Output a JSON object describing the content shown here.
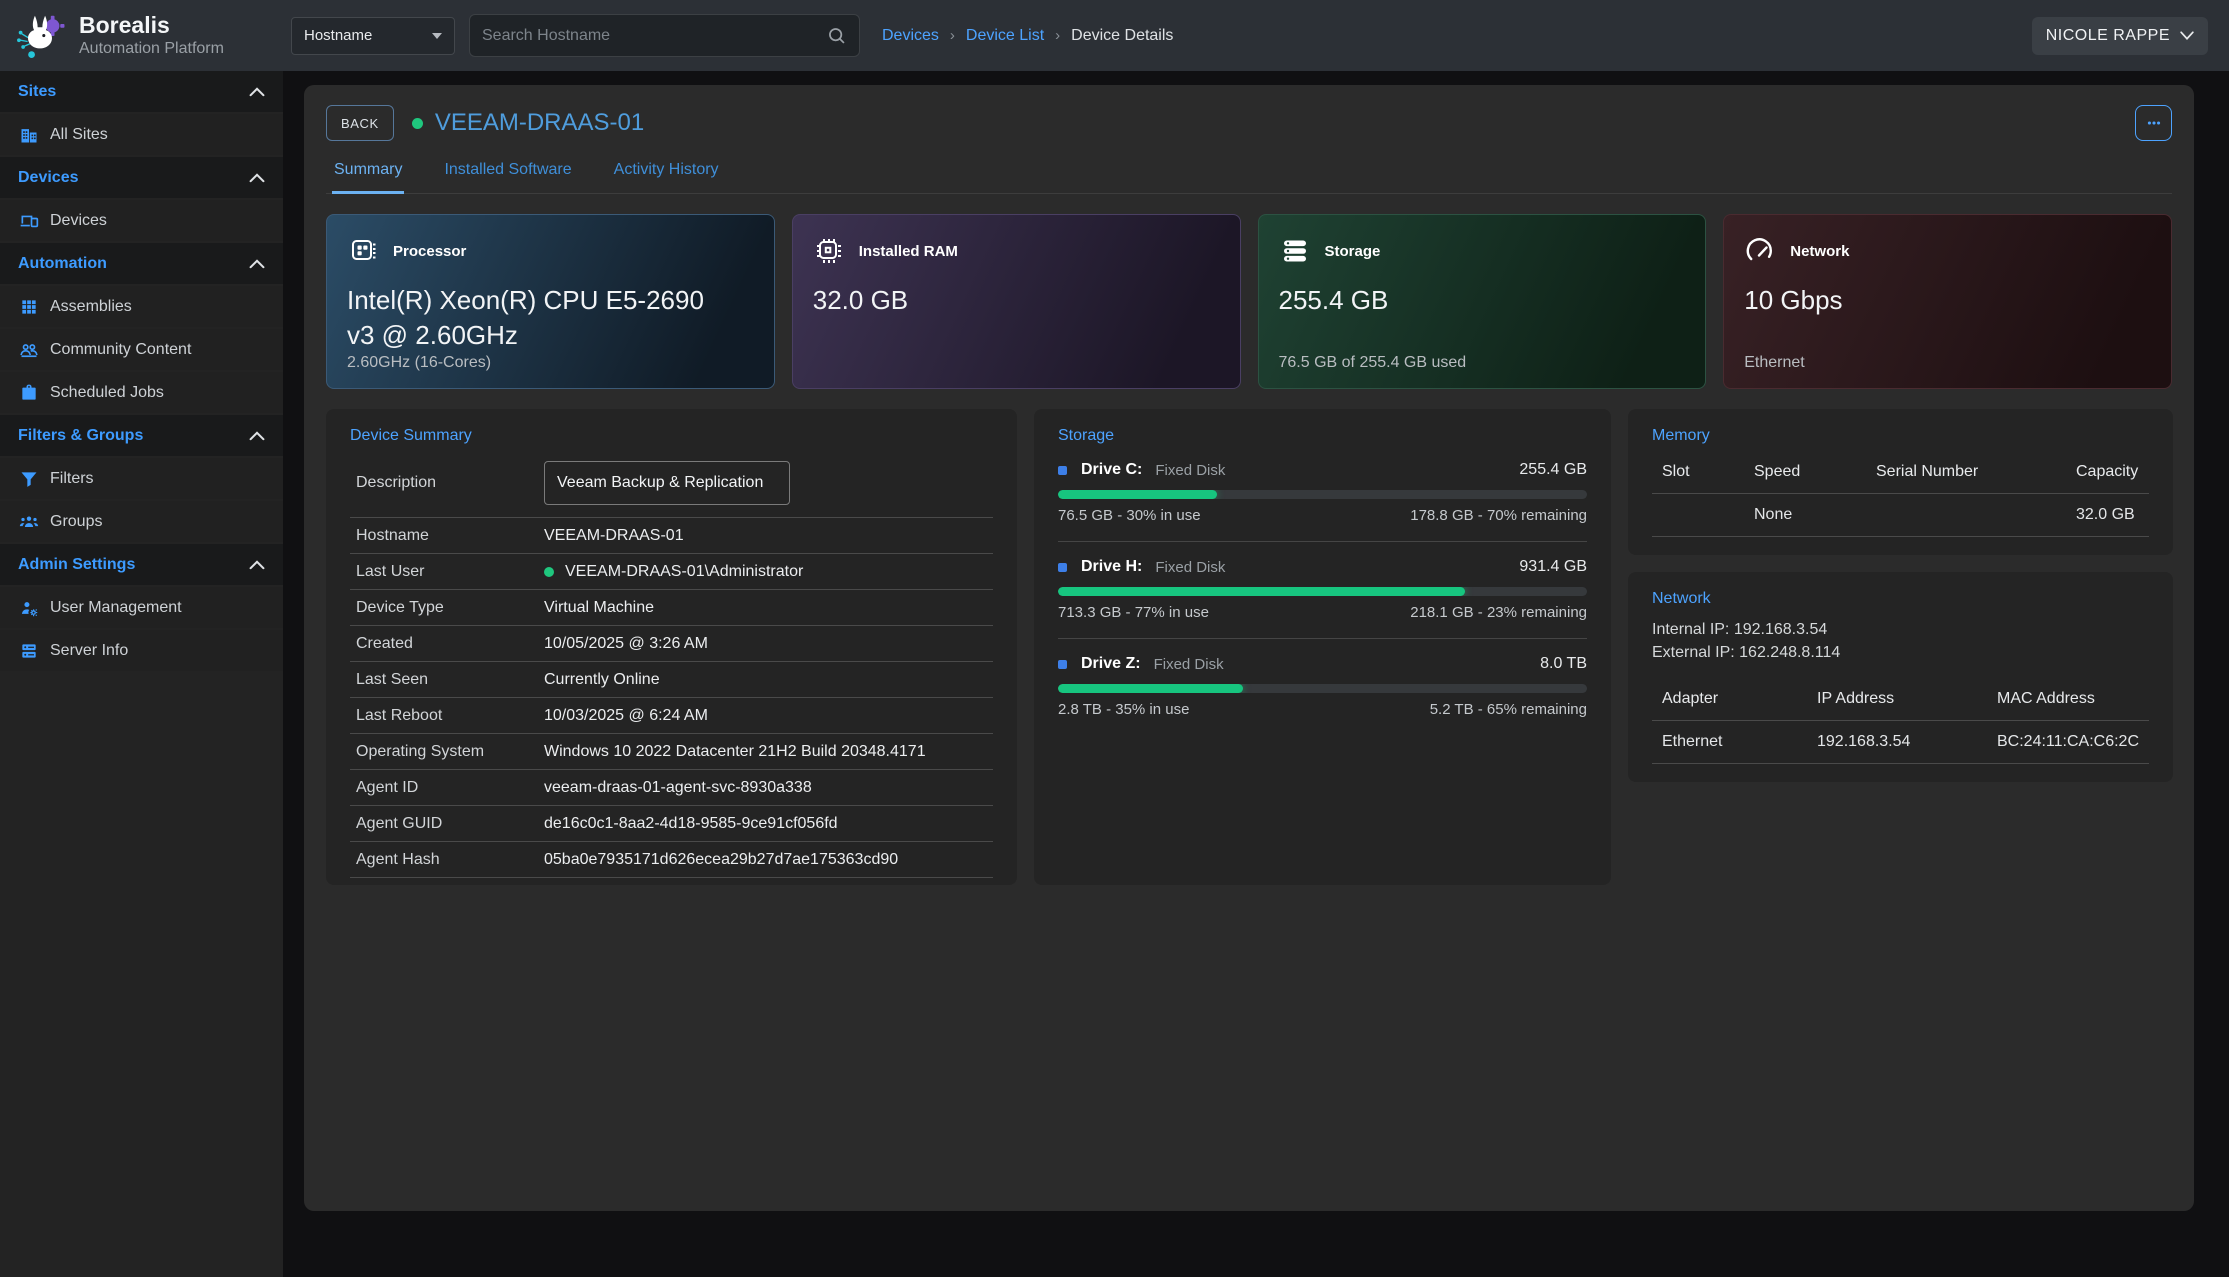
{
  "brand": {
    "name": "Borealis",
    "subtitle": "Automation Platform"
  },
  "topbar": {
    "filter_value": "Hostname",
    "search_placeholder": "Search Hostname",
    "breadcrumbs": [
      "Devices",
      "Device List",
      "Device Details"
    ],
    "breadcrumb_separator": "›",
    "user": "NICOLE RAPPE"
  },
  "sidebar": {
    "sections": [
      {
        "label": "Sites",
        "items": [
          {
            "label": "All Sites",
            "icon": "building-icon"
          }
        ]
      },
      {
        "label": "Devices",
        "items": [
          {
            "label": "Devices",
            "icon": "devices-icon"
          }
        ]
      },
      {
        "label": "Automation",
        "items": [
          {
            "label": "Assemblies",
            "icon": "grid-icon"
          },
          {
            "label": "Community Content",
            "icon": "people-icon"
          },
          {
            "label": "Scheduled Jobs",
            "icon": "briefcase-icon"
          }
        ]
      },
      {
        "label": "Filters & Groups",
        "items": [
          {
            "label": "Filters",
            "icon": "filter-icon"
          },
          {
            "label": "Groups",
            "icon": "groups-icon"
          }
        ]
      },
      {
        "label": "Admin Settings",
        "items": [
          {
            "label": "User Management",
            "icon": "user-gear-icon"
          },
          {
            "label": "Server Info",
            "icon": "server-icon"
          }
        ]
      }
    ]
  },
  "device": {
    "back_label": "BACK",
    "title": "VEEAM-DRAAS-01",
    "status": "online",
    "tabs": [
      "Summary",
      "Installed Software",
      "Activity History"
    ],
    "active_tab": "Summary"
  },
  "stat_cards": [
    {
      "label": "Processor",
      "value": "Intel(R) Xeon(R) CPU E5-2690 v3 @ 2.60GHz",
      "footer": "2.60GHz (16-Cores)",
      "icon": "cpu-icon",
      "theme": "blue"
    },
    {
      "label": "Installed RAM",
      "value": "32.0 GB",
      "footer": "",
      "icon": "ram-chip-icon",
      "theme": "purple"
    },
    {
      "label": "Storage",
      "value": "255.4 GB",
      "footer": "76.5 GB of 255.4 GB used",
      "icon": "disk-stack-icon",
      "theme": "green"
    },
    {
      "label": "Network",
      "value": "10 Gbps",
      "footer": "Ethernet",
      "icon": "speedometer-icon",
      "theme": "red"
    }
  ],
  "device_summary": {
    "title": "Device Summary",
    "description_label": "Description",
    "description_value": "Veeam Backup & Replication",
    "rows": [
      {
        "label": "Hostname",
        "value": "VEEAM-DRAAS-01"
      },
      {
        "label": "Last User",
        "value": "VEEAM-DRAAS-01\\Administrator"
      },
      {
        "label": "Device Type",
        "value": "Virtual Machine"
      },
      {
        "label": "Created",
        "value": "10/05/2025 @ 3:26 AM"
      },
      {
        "label": "Last Seen",
        "value": "Currently Online"
      },
      {
        "label": "Last Reboot",
        "value": "10/03/2025 @ 6:24 AM"
      },
      {
        "label": "Operating System",
        "value": "Windows 10 2022 Datacenter 21H2 Build 20348.4171"
      },
      {
        "label": "Agent ID",
        "value": "veeam-draas-01-agent-svc-8930a338"
      },
      {
        "label": "Agent GUID",
        "value": "de16c0c1-8aa2-4d18-9585-9ce91cf056fd"
      },
      {
        "label": "Agent Hash",
        "value": "05ba0e7935171d626ecea29b27d7ae175363cd90"
      }
    ]
  },
  "storage_panel": {
    "title": "Storage",
    "drives": [
      {
        "name": "Drive C:",
        "type": "Fixed Disk",
        "size": "255.4 GB",
        "used_pct": 30,
        "used_text": "76.5 GB - 30% in use",
        "remaining_text": "178.8 GB - 70% remaining"
      },
      {
        "name": "Drive H:",
        "type": "Fixed Disk",
        "size": "931.4 GB",
        "used_pct": 77,
        "used_text": "713.3 GB - 77% in use",
        "remaining_text": "218.1 GB - 23% remaining"
      },
      {
        "name": "Drive Z:",
        "type": "Fixed Disk",
        "size": "8.0 TB",
        "used_pct": 35,
        "used_text": "2.8 TB - 35% in use",
        "remaining_text": "5.2 TB - 65% remaining"
      }
    ]
  },
  "memory_panel": {
    "title": "Memory",
    "headers": [
      "Slot",
      "Speed",
      "Serial Number",
      "Capacity"
    ],
    "rows": [
      [
        "",
        "None",
        "",
        "32.0 GB"
      ]
    ]
  },
  "network_panel": {
    "title": "Network",
    "internal_ip": "Internal IP: 192.168.3.54",
    "external_ip": "External IP: 162.248.8.114",
    "headers": [
      "Adapter",
      "IP Address",
      "MAC Address"
    ],
    "rows": [
      [
        "Ethernet",
        "192.168.3.54",
        "BC:24:11:CA:C6:2C"
      ]
    ]
  },
  "colors": {
    "accent_blue": "#3d9bff",
    "link_blue": "#4da3ff",
    "title_blue": "#4f9ddd",
    "tab_active_blue": "#6cb2f2",
    "online_green": "#1fc77e",
    "progress_green": "#17c57f",
    "drive_bullet_blue": "#3d7fe8",
    "card_processor_from": "#2b4c66",
    "card_processor_to": "#101b26",
    "card_ram_from": "#3d3352",
    "card_ram_to": "#1c1626",
    "card_storage_from": "#1f4233",
    "card_storage_to": "#0e2016",
    "card_network_from": "#382125",
    "card_network_to": "#1d0f11"
  }
}
